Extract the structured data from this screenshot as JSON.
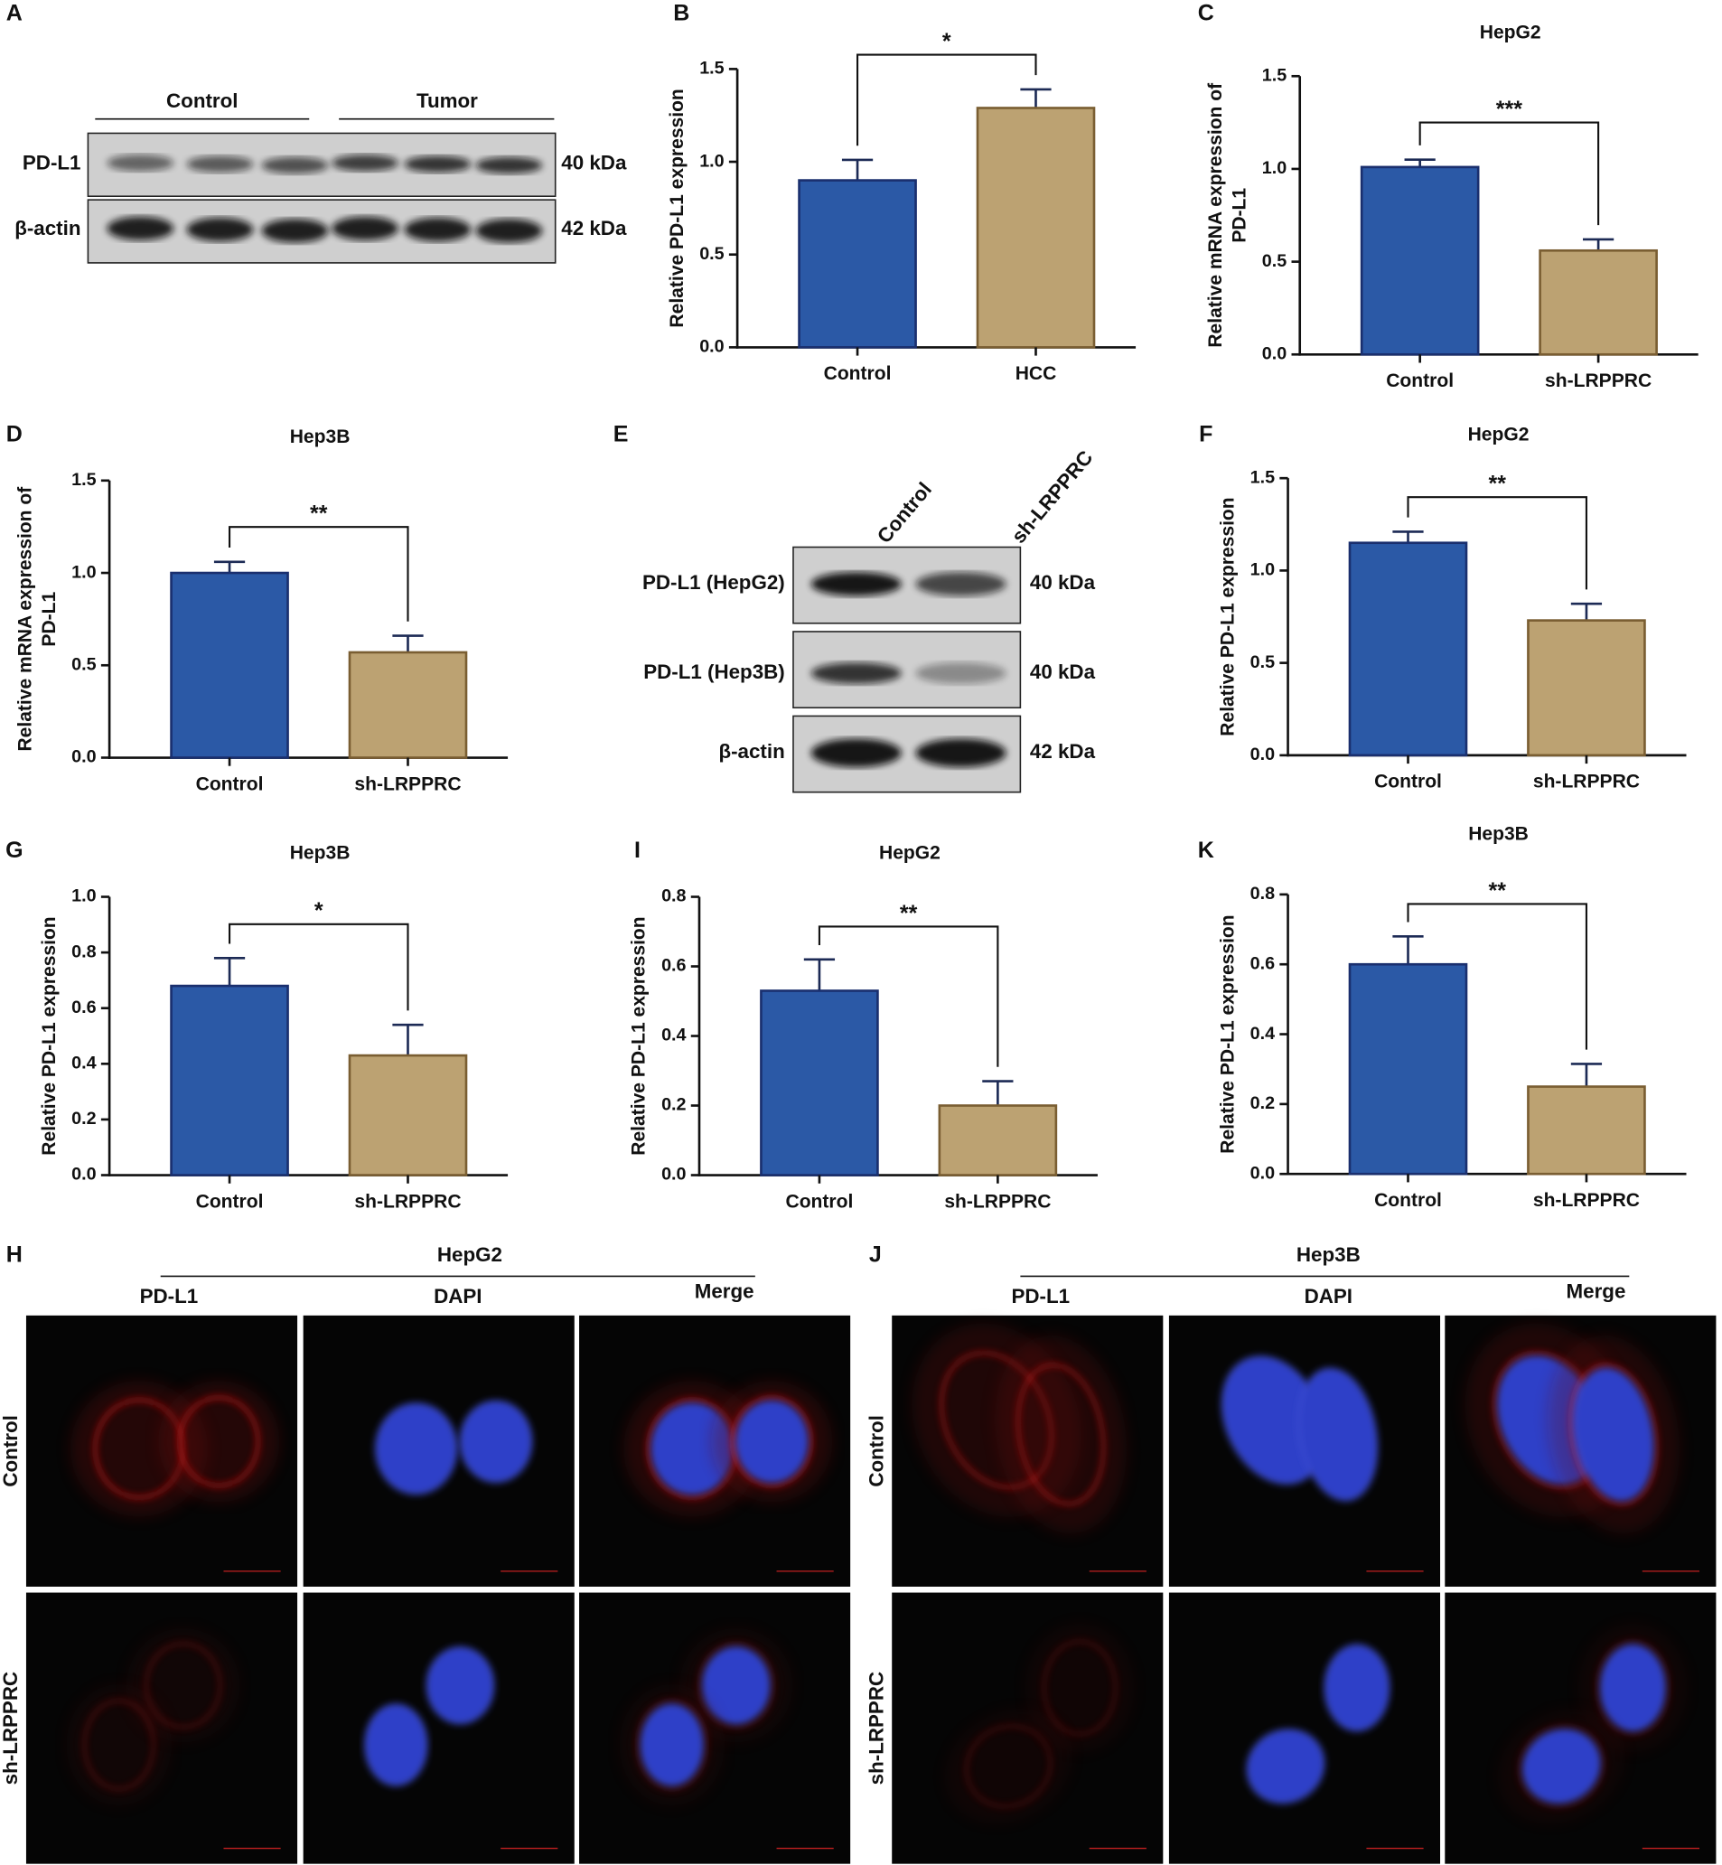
{
  "chart_data": [
    {
      "type": "bar",
      "panel": "B",
      "ylabel": [
        "Relative PD-L1 expression"
      ],
      "categories": [
        "Control",
        "HCC"
      ],
      "values": [
        0.9,
        1.29
      ],
      "errors": [
        0.11,
        0.1
      ],
      "colors": [
        "#2b59a6",
        "#bca272"
      ],
      "edge_colors": [
        "#1a2f6e",
        "#7a5e32"
      ],
      "significance": "*",
      "ylim": [
        0,
        1.5
      ],
      "yticks": [
        {
          "value": 0,
          "label": "0.0"
        },
        0.5,
        {
          "value": 1,
          "label": "1.0"
        },
        1.5
      ]
    },
    {
      "type": "bar",
      "panel": "C",
      "title": "HepG2",
      "ylabel": [
        "Relative mRNA expression of",
        "PD-L1"
      ],
      "categories": [
        "Control",
        "sh-LRPPRC"
      ],
      "values": [
        1.01,
        0.56
      ],
      "errors": [
        0.04,
        0.06
      ],
      "colors": [
        "#2b59a6",
        "#bca272"
      ],
      "edge_colors": [
        "#1a2f6e",
        "#7a5e32"
      ],
      "significance": "***",
      "ylim": [
        0,
        1.5
      ],
      "yticks": [
        {
          "value": 0,
          "label": "0.0"
        },
        0.5,
        {
          "value": 1,
          "label": "1.0"
        },
        1.5
      ]
    },
    {
      "type": "bar",
      "panel": "D",
      "title": "Hep3B",
      "ylabel": [
        "Relative mRNA expression of",
        "PD-L1"
      ],
      "categories": [
        "Control",
        "sh-LRPPRC"
      ],
      "values": [
        1.0,
        0.57
      ],
      "errors": [
        0.06,
        0.09
      ],
      "colors": [
        "#2b59a6",
        "#bca272"
      ],
      "edge_colors": [
        "#1a2f6e",
        "#7a5e32"
      ],
      "significance": "**",
      "ylim": [
        0,
        1.5
      ],
      "yticks": [
        {
          "value": 0,
          "label": "0.0"
        },
        0.5,
        {
          "value": 1,
          "label": "1.0"
        },
        1.5
      ]
    },
    {
      "type": "bar",
      "panel": "F",
      "title": "HepG2",
      "ylabel": [
        "Relative PD-L1 expression"
      ],
      "categories": [
        "Control",
        "sh-LRPPRC"
      ],
      "values": [
        1.15,
        0.73
      ],
      "errors": [
        0.06,
        0.09
      ],
      "colors": [
        "#2b59a6",
        "#bca272"
      ],
      "edge_colors": [
        "#1a2f6e",
        "#7a5e32"
      ],
      "significance": "**",
      "ylim": [
        0,
        1.5
      ],
      "yticks": [
        {
          "value": 0,
          "label": "0.0"
        },
        0.5,
        {
          "value": 1,
          "label": "1.0"
        },
        1.5
      ]
    },
    {
      "type": "bar",
      "panel": "G",
      "title": "Hep3B",
      "ylabel": [
        "Relative PD-L1 expression"
      ],
      "categories": [
        "Control",
        "sh-LRPPRC"
      ],
      "values": [
        0.68,
        0.43
      ],
      "errors": [
        0.1,
        0.11
      ],
      "colors": [
        "#2b59a6",
        "#bca272"
      ],
      "edge_colors": [
        "#1a2f6e",
        "#7a5e32"
      ],
      "significance": "*",
      "ylim": [
        0,
        1
      ],
      "yticks": [
        {
          "value": 0,
          "label": "0.0"
        },
        0.2,
        0.4,
        0.6,
        0.8,
        {
          "value": 1,
          "label": "1.0"
        }
      ]
    },
    {
      "type": "bar",
      "panel": "I",
      "title": "HepG2",
      "ylabel": [
        "Relative PD-L1 expression"
      ],
      "categories": [
        "Control",
        "sh-LRPPRC"
      ],
      "values": [
        0.53,
        0.2
      ],
      "errors": [
        0.09,
        0.07
      ],
      "colors": [
        "#2b59a6",
        "#bca272"
      ],
      "edge_colors": [
        "#1a2f6e",
        "#7a5e32"
      ],
      "significance": "**",
      "ylim": [
        0,
        0.8
      ],
      "yticks": [
        {
          "value": 0,
          "label": "0.0"
        },
        0.2,
        0.4,
        0.6,
        0.8
      ]
    },
    {
      "type": "bar",
      "panel": "K",
      "title": "Hep3B",
      "ylabel": [
        "Relative PD-L1 expression"
      ],
      "categories": [
        "Control",
        "sh-LRPPRC"
      ],
      "values": [
        0.6,
        0.25
      ],
      "errors": [
        0.08,
        0.065
      ],
      "colors": [
        "#2b59a6",
        "#bca272"
      ],
      "edge_colors": [
        "#1a2f6e",
        "#7a5e32"
      ],
      "significance": "**",
      "ylim": [
        0,
        0.8
      ],
      "yticks": [
        {
          "value": 0,
          "label": "0.0"
        },
        0.2,
        0.4,
        0.6,
        0.8
      ]
    }
  ],
  "blots": [
    {
      "panel": "A",
      "groups": [
        "Control",
        "Tumor"
      ],
      "rows": [
        {
          "label": "PD-L1",
          "size": "40 kDa"
        },
        {
          "label": "β-actin",
          "size": "42 kDa"
        }
      ]
    },
    {
      "panel": "E",
      "columns": [
        "Control",
        "sh-LRPPRC"
      ],
      "rows": [
        {
          "label": "PD-L1 (HepG2)",
          "size": "40 kDa"
        },
        {
          "label": "PD-L1 (Hep3B)",
          "size": "40 kDa"
        },
        {
          "label": "β-actin",
          "size": "42 kDa"
        }
      ]
    }
  ],
  "microscopy": [
    {
      "panel": "H",
      "title": "HepG2",
      "columns": [
        "PD-L1",
        "DAPI",
        "Merge"
      ],
      "rows": [
        "Control",
        "sh-LRPPRC"
      ]
    },
    {
      "panel": "J",
      "title": "Hep3B",
      "columns": [
        "PD-L1",
        "DAPI",
        "Merge"
      ],
      "rows": [
        "Control",
        "sh-LRPPRC"
      ]
    }
  ]
}
